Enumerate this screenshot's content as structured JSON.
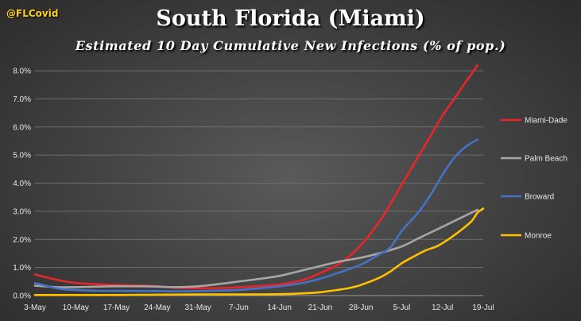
{
  "header": {
    "handle": "@FLCovid",
    "title": "South Florida (Miami)",
    "subtitle": "Estimated 10 Day Cumulative New Infections (% of pop.)"
  },
  "chart_data": {
    "type": "line",
    "title": "South Florida (Miami)",
    "subtitle": "Estimated 10 Day Cumulative New Infections (% of pop.)",
    "xlabel": "",
    "ylabel": "",
    "x_start": "3-May",
    "x_ticks": [
      "3-May",
      "10-May",
      "17-May",
      "24-May",
      "31-May",
      "7-Jun",
      "14-Jun",
      "21-Jun",
      "28-Jun",
      "5-Jul",
      "12-Jul",
      "19-Jul"
    ],
    "x_range": [
      "3-May",
      "19-Jul"
    ],
    "y_ticks": [
      "0.0%",
      "1.0%",
      "2.0%",
      "3.0%",
      "4.0%",
      "5.0%",
      "6.0%",
      "7.0%",
      "8.0%"
    ],
    "ylim": [
      0,
      8.2
    ],
    "grid": true,
    "legend_position": "right",
    "series": [
      {
        "name": "Miami-Dade",
        "color": "#e8262a",
        "points": [
          [
            "3-May",
            0.75
          ],
          [
            "7-May",
            0.55
          ],
          [
            "10-May",
            0.45
          ],
          [
            "14-May",
            0.4
          ],
          [
            "17-May",
            0.38
          ],
          [
            "21-May",
            0.36
          ],
          [
            "24-May",
            0.33
          ],
          [
            "27-May",
            0.28
          ],
          [
            "31-May",
            0.26
          ],
          [
            "4-Jun",
            0.27
          ],
          [
            "7-Jun",
            0.3
          ],
          [
            "10-Jun",
            0.33
          ],
          [
            "14-Jun",
            0.4
          ],
          [
            "18-Jun",
            0.55
          ],
          [
            "21-Jun",
            0.8
          ],
          [
            "24-Jun",
            1.1
          ],
          [
            "26-Jun",
            1.4
          ],
          [
            "28-Jun",
            1.8
          ],
          [
            "30-Jun",
            2.3
          ],
          [
            "2-Jul",
            2.9
          ],
          [
            "4-Jul",
            3.6
          ],
          [
            "6-Jul",
            4.3
          ],
          [
            "8-Jul",
            5.0
          ],
          [
            "10-Jul",
            5.7
          ],
          [
            "12-Jul",
            6.4
          ],
          [
            "14-Jul",
            7.0
          ],
          [
            "16-Jul",
            7.6
          ],
          [
            "17-Jul",
            7.9
          ],
          [
            "18-Jul",
            8.2
          ]
        ]
      },
      {
        "name": "Palm Beach",
        "color": "#a6a6a6",
        "points": [
          [
            "3-May",
            0.35
          ],
          [
            "7-May",
            0.3
          ],
          [
            "10-May",
            0.3
          ],
          [
            "14-May",
            0.32
          ],
          [
            "17-May",
            0.33
          ],
          [
            "21-May",
            0.33
          ],
          [
            "24-May",
            0.32
          ],
          [
            "27-May",
            0.3
          ],
          [
            "31-May",
            0.33
          ],
          [
            "4-Jun",
            0.42
          ],
          [
            "7-Jun",
            0.5
          ],
          [
            "10-Jun",
            0.58
          ],
          [
            "14-Jun",
            0.7
          ],
          [
            "18-Jun",
            0.9
          ],
          [
            "21-Jun",
            1.05
          ],
          [
            "24-Jun",
            1.2
          ],
          [
            "28-Jun",
            1.35
          ],
          [
            "1-Jul",
            1.5
          ],
          [
            "5-Jul",
            1.75
          ],
          [
            "8-Jul",
            2.05
          ],
          [
            "12-Jul",
            2.45
          ],
          [
            "15-Jul",
            2.75
          ],
          [
            "18-Jul",
            3.05
          ]
        ]
      },
      {
        "name": "Broward",
        "color": "#4472c4",
        "points": [
          [
            "3-May",
            0.45
          ],
          [
            "7-May",
            0.25
          ],
          [
            "10-May",
            0.2
          ],
          [
            "14-May",
            0.17
          ],
          [
            "17-May",
            0.17
          ],
          [
            "21-May",
            0.16
          ],
          [
            "24-May",
            0.16
          ],
          [
            "27-May",
            0.15
          ],
          [
            "31-May",
            0.16
          ],
          [
            "4-Jun",
            0.18
          ],
          [
            "7-Jun",
            0.2
          ],
          [
            "10-Jun",
            0.25
          ],
          [
            "14-Jun",
            0.33
          ],
          [
            "18-Jun",
            0.45
          ],
          [
            "21-Jun",
            0.6
          ],
          [
            "24-Jun",
            0.8
          ],
          [
            "28-Jun",
            1.1
          ],
          [
            "1-Jul",
            1.45
          ],
          [
            "3-Jul",
            1.7
          ],
          [
            "5-Jul",
            2.3
          ],
          [
            "8-Jul",
            3.0
          ],
          [
            "10-Jul",
            3.6
          ],
          [
            "12-Jul",
            4.3
          ],
          [
            "14-Jul",
            4.9
          ],
          [
            "16-Jul",
            5.3
          ],
          [
            "18-Jul",
            5.55
          ]
        ]
      },
      {
        "name": "Monroe",
        "color": "#ffc000",
        "points": [
          [
            "3-May",
            0.02
          ],
          [
            "10-May",
            0.02
          ],
          [
            "17-May",
            0.02
          ],
          [
            "24-May",
            0.03
          ],
          [
            "31-May",
            0.04
          ],
          [
            "7-Jun",
            0.04
          ],
          [
            "14-Jun",
            0.05
          ],
          [
            "18-Jun",
            0.08
          ],
          [
            "21-Jun",
            0.12
          ],
          [
            "24-Jun",
            0.2
          ],
          [
            "26-Jun",
            0.27
          ],
          [
            "28-Jun",
            0.38
          ],
          [
            "1-Jul",
            0.62
          ],
          [
            "3-Jul",
            0.85
          ],
          [
            "5-Jul",
            1.15
          ],
          [
            "7-Jul",
            1.38
          ],
          [
            "9-Jul",
            1.6
          ],
          [
            "11-Jul",
            1.75
          ],
          [
            "13-Jul",
            2.0
          ],
          [
            "15-Jul",
            2.3
          ],
          [
            "17-Jul",
            2.65
          ],
          [
            "18-Jul",
            2.95
          ],
          [
            "19-Jul",
            3.1
          ]
        ]
      }
    ]
  }
}
